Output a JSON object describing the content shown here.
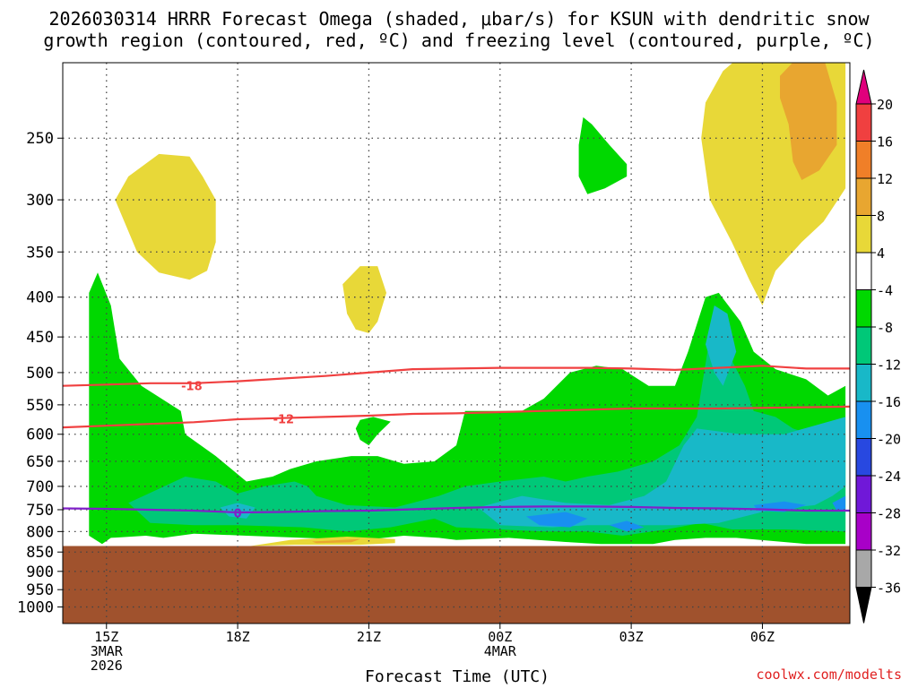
{
  "header": {
    "title_line1": "2026030314 HRRR Forecast Omega (shaded, μbar/s) for KSUN with dendritic snow",
    "title_line2": "growth region (contoured, red, ºC) and freezing level (contoured, purple, ºC)"
  },
  "footer": {
    "credit": "coolwx.com/modelts"
  },
  "chart_data": {
    "type": "contour",
    "xlabel": "Forecast Time (UTC)",
    "ylabel": "",
    "y_scale": "log-pressure (inverted)",
    "ylim": [
      1050,
      200
    ],
    "grid": true,
    "y_ticks": [
      250,
      300,
      350,
      400,
      450,
      500,
      550,
      600,
      650,
      700,
      750,
      800,
      850,
      900,
      950,
      1000
    ],
    "x_ticks": [
      {
        "hour": 15,
        "label": "15Z",
        "label2": "3MAR",
        "label3": "2026"
      },
      {
        "hour": 18,
        "label": "18Z",
        "label2": "",
        "label3": ""
      },
      {
        "hour": 21,
        "label": "21Z",
        "label2": "",
        "label3": ""
      },
      {
        "hour": 24,
        "label": "00Z",
        "label2": "4MAR",
        "label3": ""
      },
      {
        "hour": 27,
        "label": "03Z",
        "label2": "",
        "label3": ""
      },
      {
        "hour": 30,
        "label": "06Z",
        "label2": "",
        "label3": ""
      }
    ],
    "xlim": [
      14,
      32
    ],
    "colorbar": {
      "labels": [
        "20",
        "16",
        "12",
        "8",
        "4",
        "-4",
        "-8",
        "-12",
        "-16",
        "-20",
        "-24",
        "-28",
        "-32",
        "-36"
      ],
      "colors": [
        "#e0007c",
        "#f04040",
        "#f07f28",
        "#e8a630",
        "#e8d838",
        "#ffffff",
        "#00d800",
        "#00c878",
        "#18b8c8",
        "#1890f0",
        "#2848e0",
        "#7018d8",
        "#a800c8",
        "#a8a8a8",
        "#000000"
      ]
    },
    "terrain_pressure": 835,
    "terrain_color": "#a0522d",
    "omega_regions": [
      {
        "value": -4,
        "color": "#00d800",
        "points": [
          [
            14.6,
            810
          ],
          [
            14.6,
            395
          ],
          [
            14.8,
            372
          ],
          [
            15.1,
            410
          ],
          [
            15.3,
            480
          ],
          [
            15.8,
            520
          ],
          [
            16.7,
            560
          ],
          [
            16.8,
            600
          ],
          [
            17.5,
            640
          ],
          [
            18.2,
            690
          ],
          [
            18.8,
            680
          ],
          [
            19.2,
            665
          ],
          [
            19.8,
            650
          ],
          [
            20.6,
            640
          ],
          [
            21.2,
            640
          ],
          [
            21.8,
            655
          ],
          [
            22.5,
            650
          ],
          [
            23.0,
            620
          ],
          [
            23.2,
            560
          ],
          [
            24.5,
            560
          ],
          [
            25.0,
            540
          ],
          [
            25.6,
            500
          ],
          [
            26.2,
            490
          ],
          [
            26.8,
            495
          ],
          [
            27.4,
            520
          ],
          [
            28.0,
            520
          ],
          [
            28.3,
            470
          ],
          [
            28.7,
            400
          ],
          [
            29.0,
            395
          ],
          [
            29.5,
            430
          ],
          [
            29.8,
            470
          ],
          [
            30.3,
            495
          ],
          [
            31.0,
            510
          ],
          [
            31.5,
            535
          ],
          [
            31.9,
            520
          ],
          [
            31.9,
            830
          ],
          [
            31.0,
            830
          ],
          [
            29.4,
            815
          ],
          [
            28.7,
            815
          ],
          [
            28.0,
            820
          ],
          [
            27.5,
            830
          ],
          [
            26.3,
            830
          ],
          [
            25.5,
            825
          ],
          [
            24.2,
            815
          ],
          [
            23.0,
            820
          ],
          [
            22.6,
            815
          ],
          [
            21.8,
            810
          ],
          [
            20.9,
            820
          ],
          [
            19.5,
            815
          ],
          [
            18.2,
            810
          ],
          [
            17.0,
            805
          ],
          [
            16.3,
            815
          ],
          [
            15.9,
            810
          ],
          [
            15.1,
            815
          ],
          [
            14.9,
            830
          ]
        ]
      },
      {
        "value": -4,
        "color": "#00d800",
        "points": [
          [
            25.9,
            235
          ],
          [
            26.1,
            240
          ],
          [
            26.5,
            255
          ],
          [
            26.9,
            270
          ],
          [
            26.9,
            280
          ],
          [
            26.4,
            290
          ],
          [
            26.0,
            295
          ],
          [
            25.8,
            280
          ],
          [
            25.8,
            255
          ]
        ]
      },
      {
        "value": -4,
        "color": "#00d800",
        "points": [
          [
            20.8,
            575
          ],
          [
            21.1,
            570
          ],
          [
            21.5,
            578
          ],
          [
            21.2,
            600
          ],
          [
            21.0,
            620
          ],
          [
            20.8,
            610
          ],
          [
            20.7,
            590
          ]
        ]
      },
      {
        "value": -8,
        "color": "#00c878",
        "points": [
          [
            15.5,
            735
          ],
          [
            16.2,
            705
          ],
          [
            16.8,
            680
          ],
          [
            17.5,
            690
          ],
          [
            18.0,
            715
          ],
          [
            18.6,
            700
          ],
          [
            19.3,
            690
          ],
          [
            19.6,
            700
          ],
          [
            19.8,
            720
          ],
          [
            20.5,
            740
          ],
          [
            21.6,
            745
          ],
          [
            22.6,
            720
          ],
          [
            23.2,
            700
          ],
          [
            24.0,
            690
          ],
          [
            25.0,
            680
          ],
          [
            25.5,
            690
          ],
          [
            26.0,
            680
          ],
          [
            26.7,
            670
          ],
          [
            27.5,
            650
          ],
          [
            28.1,
            620
          ],
          [
            28.5,
            570
          ],
          [
            28.8,
            450
          ],
          [
            29.2,
            470
          ],
          [
            29.6,
            520
          ],
          [
            29.8,
            560
          ],
          [
            30.3,
            570
          ],
          [
            30.7,
            590
          ],
          [
            31.1,
            600
          ],
          [
            31.9,
            600
          ],
          [
            31.9,
            800
          ],
          [
            30.5,
            795
          ],
          [
            29.3,
            795
          ],
          [
            28.6,
            780
          ],
          [
            27.8,
            795
          ],
          [
            26.8,
            810
          ],
          [
            26.0,
            800
          ],
          [
            25.0,
            800
          ],
          [
            24.0,
            795
          ],
          [
            23.0,
            790
          ],
          [
            22.5,
            770
          ],
          [
            21.5,
            790
          ],
          [
            20.5,
            800
          ],
          [
            19.5,
            790
          ],
          [
            18.0,
            785
          ],
          [
            17.0,
            785
          ],
          [
            16.0,
            780
          ]
        ]
      },
      {
        "value": -12,
        "color": "#18b8c8",
        "points": [
          [
            23.5,
            745
          ],
          [
            24.5,
            720
          ],
          [
            25.5,
            735
          ],
          [
            26.5,
            740
          ],
          [
            27.3,
            720
          ],
          [
            27.8,
            690
          ],
          [
            28.2,
            620
          ],
          [
            28.5,
            590
          ],
          [
            29.5,
            600
          ],
          [
            30.5,
            600
          ],
          [
            31.9,
            570
          ],
          [
            31.9,
            700
          ],
          [
            31.6,
            720
          ],
          [
            31.2,
            740
          ],
          [
            30.2,
            750
          ],
          [
            29.0,
            780
          ],
          [
            28.0,
            785
          ],
          [
            27.0,
            785
          ],
          [
            26.0,
            785
          ],
          [
            25.2,
            790
          ],
          [
            24.0,
            785
          ]
        ]
      },
      {
        "value": -12,
        "color": "#18b8c8",
        "points": [
          [
            28.9,
            410
          ],
          [
            29.2,
            420
          ],
          [
            29.4,
            470
          ],
          [
            29.1,
            520
          ],
          [
            28.9,
            500
          ],
          [
            28.7,
            460
          ]
        ]
      },
      {
        "value": -12,
        "color": "#18b8c8",
        "points": [
          [
            17.6,
            745
          ],
          [
            18.0,
            735
          ],
          [
            18.4,
            745
          ],
          [
            18.2,
            770
          ],
          [
            17.8,
            765
          ]
        ]
      },
      {
        "value": -16,
        "color": "#1890f0",
        "points": [
          [
            24.6,
            765
          ],
          [
            25.5,
            755
          ],
          [
            26.0,
            770
          ],
          [
            25.6,
            790
          ],
          [
            24.9,
            785
          ]
        ]
      },
      {
        "value": -16,
        "color": "#1890f0",
        "points": [
          [
            26.5,
            785
          ],
          [
            26.9,
            775
          ],
          [
            27.3,
            790
          ],
          [
            26.9,
            800
          ]
        ]
      },
      {
        "value": -16,
        "color": "#1890f0",
        "points": [
          [
            29.8,
            740
          ],
          [
            30.5,
            732
          ],
          [
            31.0,
            740
          ],
          [
            30.5,
            755
          ],
          [
            29.9,
            752
          ]
        ]
      },
      {
        "value": -16,
        "color": "#1890f0",
        "points": [
          [
            31.6,
            735
          ],
          [
            31.9,
            720
          ],
          [
            31.9,
            750
          ],
          [
            31.7,
            752
          ]
        ]
      },
      {
        "value": 4,
        "color": "#e8d838",
        "points": [
          [
            15.2,
            300
          ],
          [
            15.5,
            280
          ],
          [
            16.2,
            262
          ],
          [
            16.9,
            264
          ],
          [
            17.2,
            280
          ],
          [
            17.5,
            300
          ],
          [
            17.5,
            340
          ],
          [
            17.3,
            370
          ],
          [
            16.9,
            380
          ],
          [
            16.2,
            372
          ],
          [
            15.7,
            350
          ]
        ]
      },
      {
        "value": 4,
        "color": "#e8d838",
        "points": [
          [
            20.4,
            385
          ],
          [
            20.8,
            365
          ],
          [
            21.2,
            365
          ],
          [
            21.4,
            395
          ],
          [
            21.2,
            430
          ],
          [
            21.0,
            445
          ],
          [
            20.7,
            440
          ],
          [
            20.5,
            420
          ]
        ]
      },
      {
        "value": 4,
        "color": "#e8d838",
        "points": [
          [
            28.6,
            250
          ],
          [
            28.7,
            225
          ],
          [
            29.1,
            205
          ],
          [
            29.5,
            196
          ],
          [
            30.2,
            193
          ],
          [
            31.9,
            193
          ],
          [
            31.9,
            290
          ],
          [
            31.4,
            320
          ],
          [
            30.9,
            340
          ],
          [
            30.3,
            370
          ],
          [
            30.0,
            410
          ],
          [
            29.7,
            380
          ],
          [
            29.3,
            340
          ],
          [
            28.8,
            300
          ]
        ]
      },
      {
        "value": 4,
        "color": "#e8d838",
        "points": [
          [
            18.3,
            835
          ],
          [
            19.2,
            820
          ],
          [
            20.5,
            812
          ],
          [
            21.6,
            818
          ],
          [
            21.6,
            828
          ],
          [
            20.8,
            832
          ],
          [
            19.3,
            832
          ]
        ]
      },
      {
        "value": 8,
        "color": "#e8a630",
        "points": [
          [
            30.4,
            208
          ],
          [
            30.8,
            197
          ],
          [
            31.4,
            197
          ],
          [
            31.7,
            225
          ],
          [
            31.7,
            255
          ],
          [
            31.3,
            275
          ],
          [
            30.9,
            283
          ],
          [
            30.7,
            268
          ],
          [
            30.6,
            240
          ],
          [
            30.4,
            222
          ]
        ]
      },
      {
        "value": 8,
        "color": "#e8a630",
        "points": [
          [
            19.7,
            824
          ],
          [
            20.8,
            818
          ],
          [
            20.6,
            826
          ],
          [
            19.8,
            828
          ]
        ]
      }
    ],
    "contours": [
      {
        "name": "dendritic -18",
        "label": "-18",
        "color": "#f04040",
        "label_at": [
          16.95,
          520
        ],
        "x": [
          14,
          15,
          16,
          17,
          18,
          19,
          20,
          21,
          22,
          23,
          24,
          25,
          26,
          27,
          28,
          29,
          30,
          31,
          32
        ],
        "y": [
          520,
          518,
          516,
          516,
          513,
          509,
          505,
          500,
          495,
          494,
          493,
          493,
          493,
          494,
          496,
          493,
          490,
          494,
          494
        ]
      },
      {
        "value": -12,
        "label": "-12",
        "color": "#f04040",
        "label_at": [
          19.05,
          573
        ],
        "x": [
          14,
          15,
          16,
          17,
          18,
          19,
          20,
          21,
          22,
          23,
          24,
          25,
          26,
          27,
          28,
          29,
          30,
          31,
          32
        ],
        "y": [
          588,
          585,
          582,
          579,
          574,
          572,
          570,
          568,
          565,
          564,
          562,
          560,
          558,
          556,
          556,
          556,
          555,
          554,
          553
        ]
      },
      {
        "value": 0,
        "label": "0",
        "color": "#8020c8",
        "label_at": [
          18.0,
          757
        ],
        "x": [
          14,
          15,
          16,
          17,
          18,
          19,
          20,
          21,
          22,
          23,
          24,
          25,
          26,
          27,
          28,
          29,
          30,
          31,
          32
        ],
        "y": [
          747,
          748,
          750,
          752,
          756,
          755,
          753,
          752,
          749,
          746,
          744,
          743,
          743,
          744,
          746,
          747,
          749,
          752,
          752
        ]
      }
    ]
  }
}
